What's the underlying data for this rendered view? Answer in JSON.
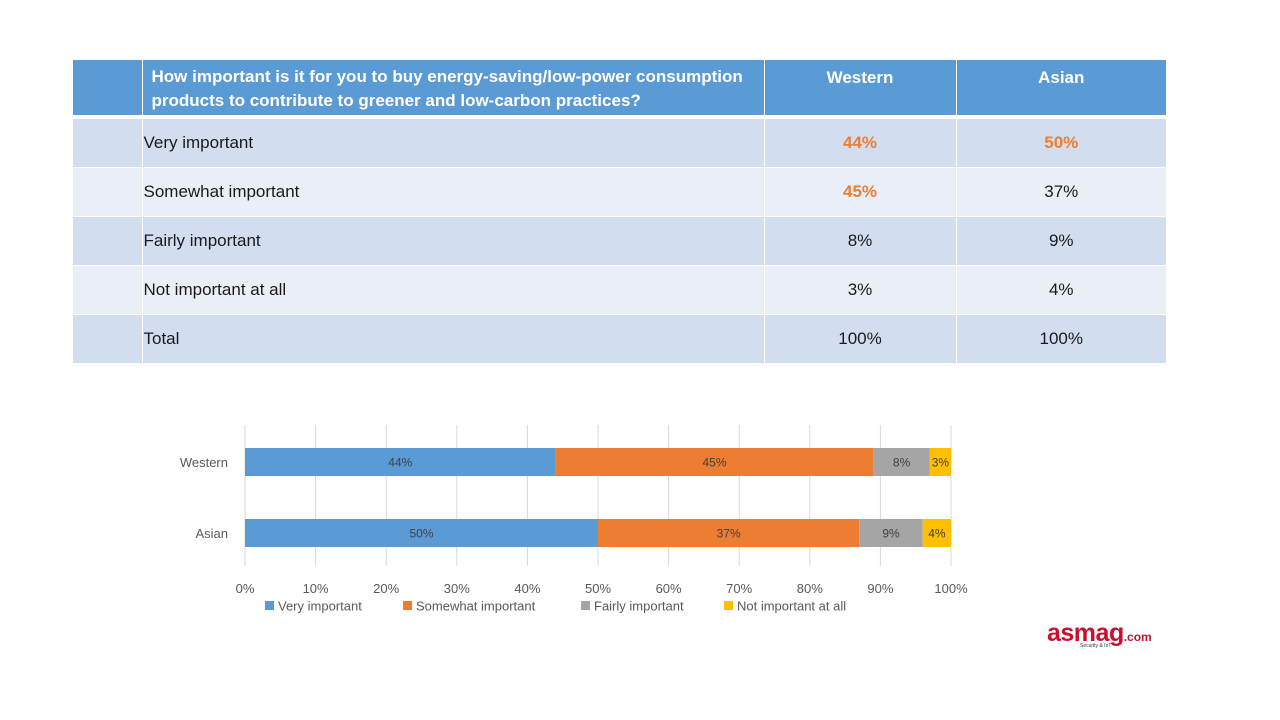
{
  "table": {
    "question": "How important is it for you to buy energy-saving/low-power consumption products to contribute to greener and low-carbon practices?",
    "columns": [
      "Western",
      "Asian"
    ],
    "rows": [
      {
        "label": "Very important",
        "western": "44%",
        "asian": "50%",
        "western_highlight": true,
        "asian_highlight": true
      },
      {
        "label": "Somewhat important",
        "western": "45%",
        "asian": "37%",
        "western_highlight": true,
        "asian_highlight": false
      },
      {
        "label": "Fairly important",
        "western": "8%",
        "asian": "9%",
        "western_highlight": false,
        "asian_highlight": false
      },
      {
        "label": "Not important at all",
        "western": "3%",
        "asian": "4%",
        "western_highlight": false,
        "asian_highlight": false
      },
      {
        "label": "Total",
        "western": "100%",
        "asian": "100%",
        "western_highlight": false,
        "asian_highlight": false
      }
    ],
    "colors": {
      "header": "#5b9bd5",
      "row_odd": "#d2deef",
      "row_even": "#eaeff7",
      "highlight": "#ed7d31"
    }
  },
  "chart_data": {
    "type": "bar",
    "orientation": "horizontal",
    "stacked": "percent",
    "categories": [
      "Western",
      "Asian"
    ],
    "series": [
      {
        "name": "Very important",
        "values": [
          44,
          50
        ],
        "color": "#5b9bd5",
        "labels": [
          "44%",
          "50%"
        ]
      },
      {
        "name": "Somewhat important",
        "values": [
          45,
          37
        ],
        "color": "#ed7d31",
        "labels": [
          "45%",
          "37%"
        ]
      },
      {
        "name": "Fairly important",
        "values": [
          8,
          9
        ],
        "color": "#a5a5a5",
        "labels": [
          "8%",
          "9%"
        ]
      },
      {
        "name": "Not important at all",
        "values": [
          3,
          4
        ],
        "color": "#ffc000",
        "labels": [
          "3%",
          "4%"
        ]
      }
    ],
    "xlim": [
      0,
      100
    ],
    "xticks": [
      "0%",
      "10%",
      "20%",
      "30%",
      "40%",
      "50%",
      "60%",
      "70%",
      "80%",
      "90%",
      "100%"
    ],
    "grid": true,
    "legend": "bottom"
  },
  "logo": {
    "name": "asmag",
    "suffix": ".com",
    "tagline": "Security & IoT"
  }
}
